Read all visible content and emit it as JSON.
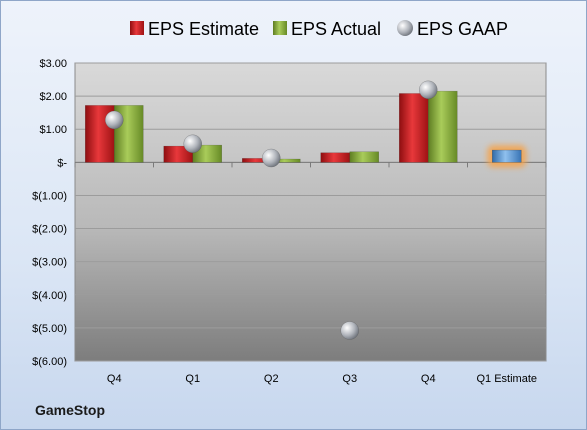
{
  "company": "GameStop",
  "colors": {
    "estimate": "#d01c1f",
    "actual": "#8cb03a",
    "gaap": "#b4b8bf",
    "q1_estimate": "#5b9bd5",
    "highlight": "#f6a34a"
  },
  "chart_data": {
    "type": "bar",
    "categories": [
      "Q4",
      "Q1",
      "Q2",
      "Q3",
      "Q4",
      "Q1 Estimate"
    ],
    "series": [
      {
        "name": "EPS Estimate",
        "values": [
          1.72,
          0.49,
          0.12,
          0.29,
          2.08,
          null
        ]
      },
      {
        "name": "EPS Actual",
        "values": [
          1.72,
          0.52,
          0.1,
          0.32,
          2.15,
          null
        ]
      },
      {
        "name": "EPS GAAP",
        "kind": "marker",
        "values": [
          1.28,
          0.56,
          0.13,
          -5.08,
          2.19,
          null
        ]
      }
    ],
    "q1_estimate_value": 0.37,
    "ylim": [
      -6,
      3
    ],
    "yticks": [
      3,
      2,
      1,
      0,
      -1,
      -2,
      -3,
      -4,
      -5,
      -6
    ],
    "ytick_labels": [
      "$3.00",
      "$2.00",
      "$1.00",
      "$-",
      "$(1.00)",
      "$(2.00)",
      "$(3.00)",
      "$(4.00)",
      "$(5.00)",
      "$(6.00)"
    ],
    "legend_position": "top",
    "grid": true,
    "xlabel": "",
    "ylabel": ""
  }
}
